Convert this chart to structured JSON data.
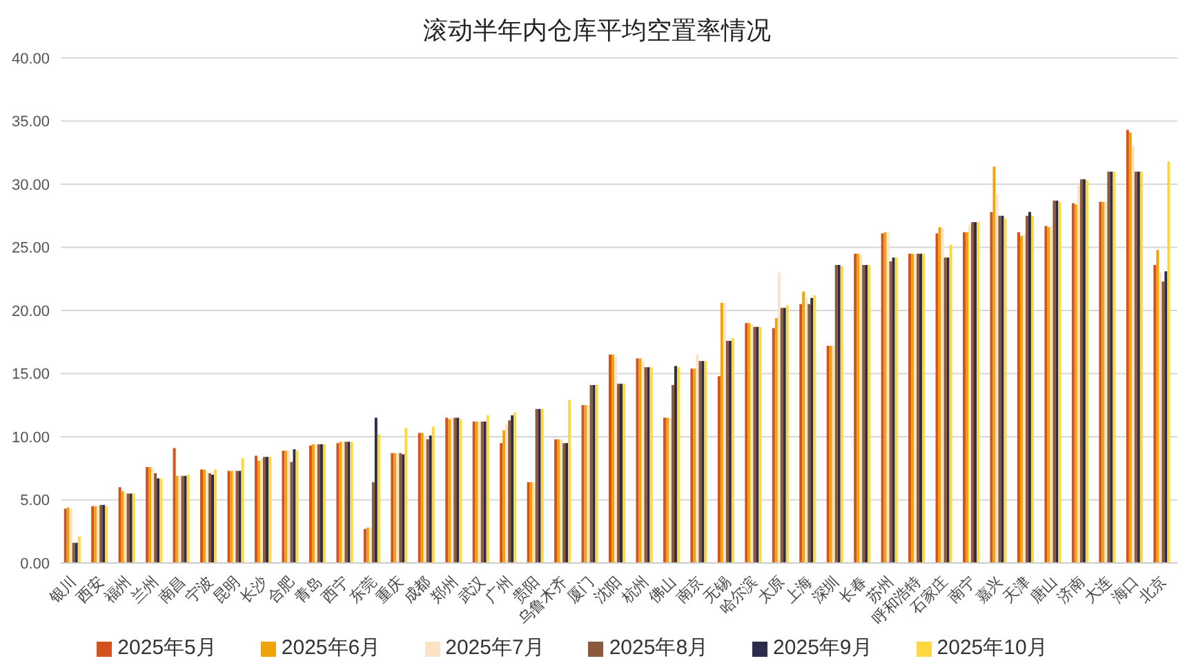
{
  "chart_data": {
    "type": "bar",
    "title": "滚动半年内仓库平均空置率情况",
    "categories": [
      "银川",
      "西安",
      "福州",
      "兰州",
      "南昌",
      "宁波",
      "昆明",
      "长沙",
      "合肥",
      "青岛",
      "西宁",
      "东莞",
      "重庆",
      "成都",
      "郑州",
      "武汉",
      "广州",
      "贵阳",
      "乌鲁木齐",
      "厦门",
      "沈阳",
      "杭州",
      "佛山",
      "南京",
      "无锡",
      "哈尔滨",
      "太原",
      "上海",
      "深圳",
      "长春",
      "苏州",
      "呼和浩特",
      "石家庄",
      "南宁",
      "嘉兴",
      "天津",
      "唐山",
      "济南",
      "大连",
      "海口",
      "北京"
    ],
    "series": [
      {
        "name": "2025年5月",
        "color": "#d4521c",
        "values": [
          4.3,
          4.5,
          6.0,
          7.6,
          9.1,
          7.4,
          7.3,
          8.5,
          8.9,
          9.3,
          9.5,
          2.7,
          8.7,
          10.3,
          11.5,
          11.2,
          9.5,
          6.4,
          9.8,
          12.5,
          16.5,
          16.2,
          11.5,
          15.4,
          14.8,
          19.0,
          18.6,
          20.5,
          17.2,
          24.5,
          26.1,
          24.5,
          26.1,
          26.2,
          27.8,
          26.2,
          26.7,
          28.5,
          28.6,
          34.3,
          23.6
        ]
      },
      {
        "name": "2025年6月",
        "color": "#f0a30a",
        "values": [
          4.4,
          4.5,
          5.7,
          7.6,
          6.9,
          7.4,
          7.3,
          8.1,
          8.9,
          9.4,
          9.6,
          2.8,
          8.7,
          10.3,
          11.4,
          11.2,
          10.5,
          6.4,
          9.8,
          12.5,
          16.5,
          16.2,
          11.5,
          15.4,
          20.6,
          19.0,
          19.4,
          21.5,
          17.2,
          24.5,
          26.2,
          24.5,
          26.6,
          26.2,
          31.4,
          25.9,
          26.6,
          28.4,
          28.6,
          34.1,
          24.8
        ]
      },
      {
        "name": "2025年7月",
        "color": "#fbe3c8",
        "values": [
          4.3,
          4.5,
          5.6,
          7.5,
          6.9,
          7.3,
          7.4,
          8.3,
          8.9,
          9.4,
          9.6,
          2.8,
          8.7,
          10.0,
          11.5,
          11.2,
          11.0,
          6.4,
          9.8,
          12.5,
          16.3,
          16.0,
          11.5,
          16.5,
          20.6,
          18.9,
          23.0,
          21.0,
          17.2,
          24.4,
          26.2,
          24.5,
          26.5,
          26.8,
          29.2,
          26.0,
          26.7,
          30.0,
          28.6,
          33.0,
          23.0
        ]
      },
      {
        "name": "2025年8月",
        "color": "#8b5a3c",
        "values": [
          1.6,
          4.6,
          5.5,
          7.1,
          6.9,
          7.1,
          7.3,
          8.4,
          8.0,
          9.4,
          9.6,
          6.4,
          8.7,
          9.8,
          11.5,
          11.2,
          11.3,
          12.2,
          9.5,
          14.1,
          14.2,
          15.5,
          14.1,
          16.0,
          17.6,
          18.7,
          20.2,
          20.5,
          23.6,
          23.6,
          23.9,
          24.5,
          24.2,
          27.0,
          27.5,
          27.5,
          28.7,
          30.4,
          31.0,
          31.0,
          22.3
        ]
      },
      {
        "name": "2025年9月",
        "color": "#2b2d4a",
        "values": [
          1.6,
          4.6,
          5.5,
          6.7,
          6.9,
          7.0,
          7.3,
          8.4,
          9.0,
          9.4,
          9.6,
          11.5,
          8.6,
          10.1,
          11.5,
          11.2,
          11.7,
          12.2,
          9.5,
          14.1,
          14.2,
          15.5,
          15.6,
          16.0,
          17.6,
          18.7,
          20.2,
          21.0,
          23.6,
          23.6,
          24.2,
          24.5,
          24.2,
          27.0,
          27.5,
          27.8,
          28.7,
          30.4,
          31.0,
          31.0,
          23.1
        ]
      },
      {
        "name": "2025年10月",
        "color": "#ffd740",
        "values": [
          2.1,
          4.5,
          5.5,
          6.7,
          7.0,
          7.4,
          8.3,
          8.4,
          8.9,
          9.4,
          9.6,
          10.2,
          10.7,
          10.8,
          11.4,
          11.7,
          11.9,
          12.2,
          12.9,
          14.1,
          14.2,
          15.5,
          15.5,
          16.0,
          17.8,
          18.7,
          20.4,
          21.2,
          23.5,
          23.6,
          24.2,
          24.5,
          25.2,
          27.0,
          27.3,
          27.5,
          28.6,
          30.3,
          31.0,
          31.0,
          31.8
        ]
      }
    ],
    "ylim": [
      0,
      40
    ],
    "yticks": [
      {
        "value": 0,
        "label": "0.00"
      },
      {
        "value": 5,
        "label": "5.00"
      },
      {
        "value": 10,
        "label": "10.00"
      },
      {
        "value": 15,
        "label": "15.00"
      },
      {
        "value": 20,
        "label": "20.00"
      },
      {
        "value": 25,
        "label": "25.00"
      },
      {
        "value": 30,
        "label": "30.00"
      },
      {
        "value": 35,
        "label": "35.00"
      },
      {
        "value": 40,
        "label": "40.00"
      }
    ],
    "grid": "y",
    "legend": "bottom"
  }
}
